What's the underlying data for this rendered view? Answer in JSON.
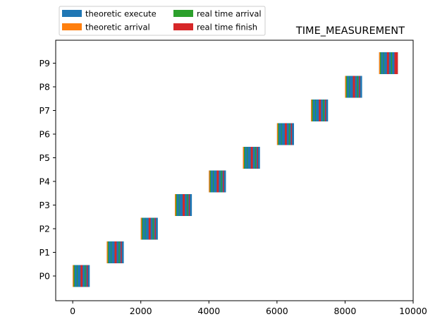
{
  "chart_data": {
    "type": "bar",
    "orientation": "horizontal",
    "title": "TIME_MEASUREMENT",
    "xlabel": "",
    "ylabel": "",
    "xlim": [
      -500,
      10000
    ],
    "x_ticks": [
      0,
      2000,
      4000,
      6000,
      8000,
      10000
    ],
    "categories": [
      "P0",
      "P1",
      "P2",
      "P3",
      "P4",
      "P5",
      "P6",
      "P7",
      "P8",
      "P9"
    ],
    "grid": false,
    "legend": {
      "placement": "top-left outside",
      "columns": 2
    },
    "series": [
      {
        "name": "theoretic execute",
        "color": "#1f77b4",
        "start": [
          0,
          1000,
          2000,
          3000,
          4000,
          5000,
          6000,
          7000,
          8000,
          9000
        ],
        "end": [
          500,
          1500,
          2500,
          3500,
          4500,
          5500,
          6500,
          7500,
          8500,
          9550
        ]
      },
      {
        "name": "theoretic arrival",
        "color": "#ff7f0e",
        "start": [
          0,
          1000,
          2000,
          3000,
          4000,
          5000,
          6000,
          7000,
          8000,
          9000
        ],
        "end": [
          30,
          1030,
          2030,
          3030,
          4030,
          5030,
          6030,
          7030,
          8030,
          9030
        ]
      },
      {
        "name": "real time arrival",
        "color": "#2ca02c",
        "start": [
          30,
          1030,
          2030,
          3030,
          4030,
          5030,
          6030,
          7030,
          8030,
          9030
        ],
        "end": [
          60,
          1060,
          2060,
          3060,
          4060,
          5060,
          6060,
          7060,
          8060,
          9060
        ]
      },
      {
        "name": "theoretic execute",
        "color": "#1f77b4",
        "start": [
          60,
          1060,
          2060,
          3060,
          4060,
          5060,
          6060,
          7060,
          8060,
          9060
        ],
        "end": [
          120,
          1120,
          2120,
          3120,
          4120,
          5120,
          6120,
          7120,
          8120,
          9120
        ]
      },
      {
        "name": "real time arrival",
        "color": "#2ca02c",
        "start": [
          120,
          1120,
          2120,
          3120,
          4120,
          5120,
          6120,
          7120,
          8120,
          9120
        ],
        "end": [
          140,
          1140,
          2140,
          3140,
          4140,
          5140,
          6140,
          7140,
          8140,
          9140
        ]
      },
      {
        "name": "theoretic execute",
        "color": "#1f77b4",
        "start": [
          140,
          1140,
          2140,
          3140,
          4140,
          5140,
          6140,
          7140,
          8140,
          9140
        ],
        "end": [
          230,
          1230,
          2230,
          3230,
          4230,
          5230,
          6230,
          7230,
          8230,
          9230
        ]
      },
      {
        "name": "real time finish",
        "color": "#d62728",
        "start": [
          230,
          1230,
          2230,
          3230,
          4230,
          5230,
          6230,
          7230,
          8230,
          9230
        ],
        "end": [
          290,
          1290,
          2290,
          3290,
          4290,
          5290,
          6290,
          7290,
          8290,
          9290
        ]
      },
      {
        "name": "real time arrival",
        "color": "#2ca02c",
        "start": [
          350,
          1350,
          2350,
          3350,
          4350,
          5350,
          6350,
          7350,
          8350,
          9350
        ],
        "end": [
          380,
          1380,
          2380,
          3380,
          4380,
          5380,
          6380,
          7380,
          8380,
          9380
        ]
      },
      {
        "name": "real time finish",
        "color": "#d62728",
        "start": [
          410,
          1410,
          2410,
          3410,
          4410,
          5410,
          6410,
          7410,
          8410,
          9450
        ],
        "end": [
          440,
          1440,
          2440,
          3440,
          4440,
          5440,
          6440,
          7440,
          8440,
          9550
        ]
      }
    ],
    "legend_entries": [
      {
        "name": "theoretic execute",
        "color": "#1f77b4"
      },
      {
        "name": "theoretic arrival",
        "color": "#ff7f0e"
      },
      {
        "name": "real time arrival",
        "color": "#2ca02c"
      },
      {
        "name": "real time finish",
        "color": "#d62728"
      }
    ]
  }
}
